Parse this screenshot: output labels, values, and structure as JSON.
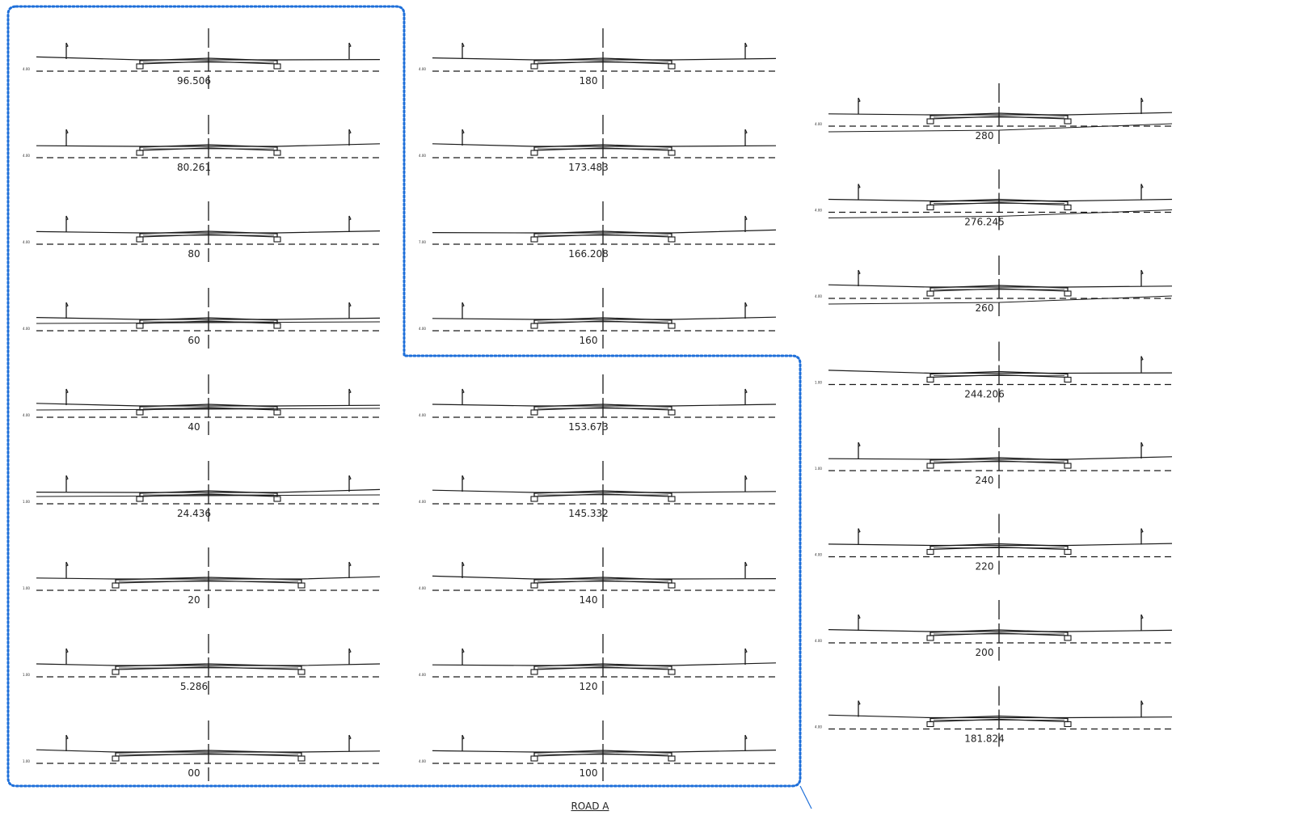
{
  "drawing_title": "ROAD A",
  "colors": {
    "revision_cloud": "#1e6fd9",
    "linework": "#1a1a1a"
  },
  "columns": [
    {
      "sections": [
        {
          "station": "96.506",
          "datum": "4.00"
        },
        {
          "station": "80.261",
          "datum": "4.00"
        },
        {
          "station": "80",
          "datum": "4.00"
        },
        {
          "station": "60",
          "datum": "4.00"
        },
        {
          "station": "40",
          "datum": "4.00"
        },
        {
          "station": "24.436",
          "datum": "1.00"
        },
        {
          "station": "20",
          "datum": "1.00"
        },
        {
          "station": "5.286",
          "datum": "1.00"
        },
        {
          "station": "00",
          "datum": "1.00"
        }
      ]
    },
    {
      "sections": [
        {
          "station": "180",
          "datum": "4.00"
        },
        {
          "station": "173.483",
          "datum": "4.00"
        },
        {
          "station": "166.208",
          "datum": "7.00"
        },
        {
          "station": "160",
          "datum": "4.00"
        },
        {
          "station": "153.673",
          "datum": "4.00"
        },
        {
          "station": "145.332",
          "datum": "4.00"
        },
        {
          "station": "140",
          "datum": "4.00"
        },
        {
          "station": "120",
          "datum": "4.00"
        },
        {
          "station": "100",
          "datum": "4.00"
        }
      ]
    },
    {
      "sections": [
        {
          "station": "280",
          "datum": "4.00"
        },
        {
          "station": "276.245",
          "datum": "4.00"
        },
        {
          "station": "260",
          "datum": "4.00"
        },
        {
          "station": "244.206",
          "datum": "1.00"
        },
        {
          "station": "240",
          "datum": "1.00"
        },
        {
          "station": "220",
          "datum": "4.00"
        },
        {
          "station": "200",
          "datum": "4.00"
        },
        {
          "station": "181.824",
          "datum": "4.00"
        }
      ]
    }
  ]
}
